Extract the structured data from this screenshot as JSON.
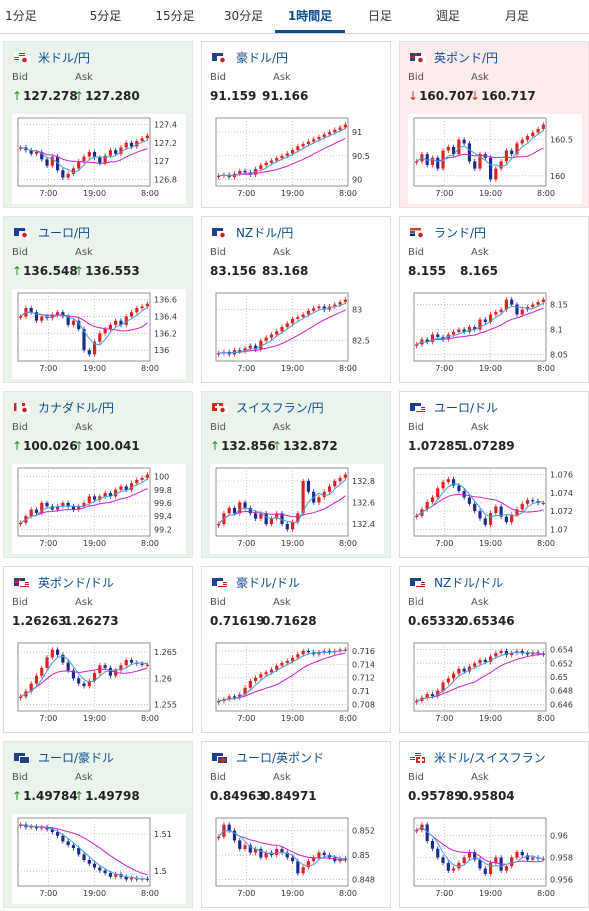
{
  "tabs": [
    {
      "label": "1分足"
    },
    {
      "label": "5分足"
    },
    {
      "label": "15分足"
    },
    {
      "label": "30分足"
    },
    {
      "label": "1時間足",
      "active": true
    },
    {
      "label": "日足"
    },
    {
      "label": "週足"
    },
    {
      "label": "月足"
    }
  ],
  "labels": {
    "bid": "Bid",
    "ask": "Ask"
  },
  "colors": {
    "up_card": "#eaf4ea",
    "down_card": "#fcecec",
    "link": "#0d4c92",
    "candle_up": "#e02020",
    "candle_down": "#1a2a8c",
    "ma1": "#d020d0",
    "ma2": "#40a0e0",
    "grid": "#bbbbbb"
  },
  "x_ticks": [
    "7:00",
    "19:00",
    "8:00"
  ],
  "pairs": [
    {
      "name": "米ドル/円",
      "state": "up",
      "bid": "127.278",
      "ask": "127.280",
      "bid_dir": "up",
      "ask_dir": "up",
      "flags": [
        "us",
        "jp"
      ],
      "yticks": [
        "127.4",
        "127.2",
        "127",
        "126.8"
      ]
    },
    {
      "name": "豪ドル/円",
      "state": "none",
      "bid": "91.159",
      "ask": "91.166",
      "bid_dir": "",
      "ask_dir": "",
      "flags": [
        "au",
        "jp"
      ],
      "yticks": [
        "91",
        "90.5",
        "90"
      ]
    },
    {
      "name": "英ポンド/円",
      "state": "down",
      "bid": "160.707",
      "ask": "160.717",
      "bid_dir": "down",
      "ask_dir": "down",
      "flags": [
        "gb",
        "jp"
      ],
      "yticks": [
        "160.5",
        "160"
      ]
    },
    {
      "name": "ユーロ/円",
      "state": "up",
      "bid": "136.548",
      "ask": "136.553",
      "bid_dir": "up",
      "ask_dir": "up",
      "flags": [
        "eu",
        "jp"
      ],
      "yticks": [
        "136.6",
        "136.4",
        "136.2",
        "136"
      ]
    },
    {
      "name": "NZドル/円",
      "state": "none",
      "bid": "83.156",
      "ask": "83.168",
      "bid_dir": "",
      "ask_dir": "",
      "flags": [
        "nz",
        "jp"
      ],
      "yticks": [
        "83",
        "82.5"
      ]
    },
    {
      "name": "ランド/円",
      "state": "none",
      "bid": "8.155",
      "ask": "8.165",
      "bid_dir": "",
      "ask_dir": "",
      "flags": [
        "za",
        "jp"
      ],
      "yticks": [
        "8.15",
        "8.1",
        "8.05"
      ]
    },
    {
      "name": "カナダドル/円",
      "state": "up",
      "bid": "100.026",
      "ask": "100.041",
      "bid_dir": "up",
      "ask_dir": "up",
      "flags": [
        "ca",
        "jp"
      ],
      "yticks": [
        "100",
        "99.8",
        "99.6",
        "99.4",
        "99.2"
      ]
    },
    {
      "name": "スイスフラン/円",
      "state": "up",
      "bid": "132.856",
      "ask": "132.872",
      "bid_dir": "up",
      "ask_dir": "up",
      "flags": [
        "ch",
        "jp"
      ],
      "yticks": [
        "132.8",
        "132.6",
        "132.4"
      ]
    },
    {
      "name": "ユーロ/ドル",
      "state": "none",
      "bid": "1.07285",
      "ask": "1.07289",
      "bid_dir": "",
      "ask_dir": "",
      "flags": [
        "eu",
        "us"
      ],
      "yticks": [
        "1.076",
        "1.074",
        "1.072",
        "1.07"
      ]
    },
    {
      "name": "英ポンド/ドル",
      "state": "none",
      "bid": "1.26263",
      "ask": "1.26273",
      "bid_dir": "",
      "ask_dir": "",
      "flags": [
        "gb",
        "us"
      ],
      "yticks": [
        "1.265",
        "1.26",
        "1.255"
      ]
    },
    {
      "name": "豪ドル/ドル",
      "state": "none",
      "bid": "0.71619",
      "ask": "0.71628",
      "bid_dir": "",
      "ask_dir": "",
      "flags": [
        "au",
        "us"
      ],
      "yticks": [
        "0.716",
        "0.714",
        "0.712",
        "0.71",
        "0.708"
      ]
    },
    {
      "name": "NZドル/ドル",
      "state": "none",
      "bid": "0.65332",
      "ask": "0.65346",
      "bid_dir": "",
      "ask_dir": "",
      "flags": [
        "nz",
        "us"
      ],
      "yticks": [
        "0.654",
        "0.652",
        "0.65",
        "0.648",
        "0.646"
      ]
    },
    {
      "name": "ユーロ/豪ドル",
      "state": "up",
      "bid": "1.49784",
      "ask": "1.49798",
      "bid_dir": "up",
      "ask_dir": "up",
      "flags": [
        "eu",
        "au"
      ],
      "yticks": [
        "1.51",
        "1.5"
      ]
    },
    {
      "name": "ユーロ/英ポンド",
      "state": "none",
      "bid": "0.84963",
      "ask": "0.84971",
      "bid_dir": "",
      "ask_dir": "",
      "flags": [
        "eu",
        "gb"
      ],
      "yticks": [
        "0.852",
        "0.85",
        "0.848"
      ]
    },
    {
      "name": "米ドル/スイスフラン",
      "state": "none",
      "bid": "0.95789",
      "ask": "0.95804",
      "bid_dir": "",
      "ask_dir": "",
      "flags": [
        "us",
        "ch"
      ],
      "yticks": [
        "0.96",
        "0.958",
        "0.956"
      ]
    }
  ],
  "chart_data": [
    {
      "type": "candlestick",
      "pair": "米ドル/円",
      "y_ticks": [
        127.4,
        127.2,
        127,
        126.8
      ],
      "x_ticks": [
        "7:00",
        "19:00",
        "8:00"
      ],
      "close": [
        127.15,
        127.12,
        127.08,
        127.1,
        127.02,
        126.95,
        127.05,
        126.9,
        126.82,
        126.86,
        126.92,
        127.0,
        127.05,
        127.1,
        127.04,
        126.98,
        127.06,
        127.12,
        127.08,
        127.15,
        127.2,
        127.16,
        127.22,
        127.25,
        127.28
      ]
    },
    {
      "type": "candlestick",
      "pair": "豪ドル/円",
      "y_ticks": [
        91,
        90.5,
        90
      ],
      "x_ticks": [
        "7:00",
        "19:00",
        "8:00"
      ],
      "close": [
        90.08,
        90.1,
        90.05,
        90.12,
        90.18,
        90.15,
        90.1,
        90.22,
        90.3,
        90.35,
        90.4,
        90.45,
        90.5,
        90.55,
        90.62,
        90.7,
        90.75,
        90.8,
        90.85,
        90.9,
        90.95,
        91.0,
        91.05,
        91.1,
        91.16
      ]
    },
    {
      "type": "candlestick",
      "pair": "英ポンド/円",
      "y_ticks": [
        160.5,
        160
      ],
      "x_ticks": [
        "7:00",
        "19:00",
        "8:00"
      ],
      "close": [
        160.2,
        160.3,
        160.15,
        160.25,
        160.1,
        160.35,
        160.4,
        160.3,
        160.5,
        160.45,
        160.2,
        160.1,
        160.3,
        160.25,
        159.95,
        160.1,
        160.2,
        160.35,
        160.3,
        160.45,
        160.5,
        160.55,
        160.6,
        160.65,
        160.71
      ]
    },
    {
      "type": "candlestick",
      "pair": "ユーロ/円",
      "y_ticks": [
        136.6,
        136.4,
        136.2,
        136
      ],
      "x_ticks": [
        "7:00",
        "19:00",
        "8:00"
      ],
      "close": [
        136.4,
        136.5,
        136.45,
        136.35,
        136.4,
        136.38,
        136.42,
        136.45,
        136.4,
        136.3,
        136.35,
        136.25,
        136.0,
        135.95,
        136.1,
        136.2,
        136.25,
        136.3,
        136.35,
        136.3,
        136.4,
        136.45,
        136.5,
        136.52,
        136.55
      ]
    },
    {
      "type": "candlestick",
      "pair": "NZドル/円",
      "y_ticks": [
        83,
        82.5
      ],
      "x_ticks": [
        "7:00",
        "19:00",
        "8:00"
      ],
      "close": [
        82.3,
        82.32,
        82.28,
        82.35,
        82.33,
        82.38,
        82.42,
        82.36,
        82.5,
        82.55,
        82.6,
        82.65,
        82.72,
        82.78,
        82.85,
        82.88,
        82.92,
        82.98,
        83.02,
        83.05,
        83.0,
        83.05,
        83.08,
        83.12,
        83.16
      ]
    },
    {
      "type": "candlestick",
      "pair": "ランド/円",
      "y_ticks": [
        8.15,
        8.1,
        8.05
      ],
      "x_ticks": [
        "7:00",
        "19:00",
        "8:00"
      ],
      "close": [
        8.07,
        8.08,
        8.075,
        8.09,
        8.085,
        8.08,
        8.09,
        8.095,
        8.1,
        8.095,
        8.105,
        8.1,
        8.12,
        8.115,
        8.13,
        8.135,
        8.14,
        8.16,
        8.15,
        8.13,
        8.14,
        8.145,
        8.15,
        8.155,
        8.16
      ]
    },
    {
      "type": "candlestick",
      "pair": "カナダドル/円",
      "y_ticks": [
        100,
        99.8,
        99.6,
        99.4,
        99.2
      ],
      "x_ticks": [
        "7:00",
        "19:00",
        "8:00"
      ],
      "close": [
        99.3,
        99.4,
        99.5,
        99.45,
        99.6,
        99.55,
        99.5,
        99.55,
        99.6,
        99.55,
        99.5,
        99.55,
        99.6,
        99.7,
        99.65,
        99.7,
        99.75,
        99.7,
        99.8,
        99.85,
        99.8,
        99.9,
        99.95,
        99.98,
        100.03
      ]
    },
    {
      "type": "candlestick",
      "pair": "スイスフラン/円",
      "y_ticks": [
        132.8,
        132.6,
        132.4
      ],
      "x_ticks": [
        "7:00",
        "19:00",
        "8:00"
      ],
      "close": [
        132.4,
        132.5,
        132.55,
        132.5,
        132.6,
        132.55,
        132.5,
        132.45,
        132.5,
        132.4,
        132.45,
        132.5,
        132.4,
        132.35,
        132.42,
        132.5,
        132.8,
        132.7,
        132.6,
        132.65,
        132.7,
        132.75,
        132.8,
        132.83,
        132.86
      ]
    },
    {
      "type": "candlestick",
      "pair": "ユーロ/ドル",
      "y_ticks": [
        1.076,
        1.074,
        1.072,
        1.07
      ],
      "x_ticks": [
        "7:00",
        "19:00",
        "8:00"
      ],
      "close": [
        1.0715,
        1.0722,
        1.073,
        1.0735,
        1.0745,
        1.0752,
        1.0755,
        1.0748,
        1.0742,
        1.0735,
        1.0728,
        1.072,
        1.0712,
        1.0705,
        1.0718,
        1.0725,
        1.0714,
        1.0708,
        1.0716,
        1.0722,
        1.0728,
        1.0732,
        1.0731,
        1.0729,
        1.0729
      ]
    },
    {
      "type": "candlestick",
      "pair": "英ポンド/ドル",
      "y_ticks": [
        1.265,
        1.26,
        1.255
      ],
      "x_ticks": [
        "7:00",
        "19:00",
        "8:00"
      ],
      "close": [
        1.2565,
        1.2575,
        1.259,
        1.2605,
        1.262,
        1.264,
        1.2655,
        1.2645,
        1.263,
        1.2615,
        1.26,
        1.259,
        1.2585,
        1.2595,
        1.261,
        1.2625,
        1.262,
        1.2605,
        1.2615,
        1.2625,
        1.2635,
        1.263,
        1.2628,
        1.2626,
        1.2626
      ]
    },
    {
      "type": "candlestick",
      "pair": "豪ドル/ドル",
      "y_ticks": [
        0.716,
        0.714,
        0.712,
        0.71,
        0.708
      ],
      "x_ticks": [
        "7:00",
        "19:00",
        "8:00"
      ],
      "close": [
        0.7085,
        0.7088,
        0.7092,
        0.709,
        0.7095,
        0.7105,
        0.7115,
        0.712,
        0.7125,
        0.7128,
        0.7132,
        0.7138,
        0.7142,
        0.7145,
        0.715,
        0.7155,
        0.716,
        0.7158,
        0.7155,
        0.7158,
        0.716,
        0.7158,
        0.716,
        0.7162,
        0.7162
      ]
    },
    {
      "type": "candlestick",
      "pair": "NZドル/ドル",
      "y_ticks": [
        0.654,
        0.652,
        0.65,
        0.648,
        0.646
      ],
      "x_ticks": [
        "7:00",
        "19:00",
        "8:00"
      ],
      "close": [
        0.6465,
        0.647,
        0.6475,
        0.6472,
        0.648,
        0.6492,
        0.6498,
        0.6505,
        0.6512,
        0.6508,
        0.6515,
        0.652,
        0.6525,
        0.6522,
        0.653,
        0.6535,
        0.6538,
        0.6532,
        0.6535,
        0.6538,
        0.6535,
        0.6533,
        0.6536,
        0.6534,
        0.6533
      ]
    },
    {
      "type": "candlestick",
      "pair": "ユーロ/豪ドル",
      "y_ticks": [
        1.51,
        1.5
      ],
      "x_ticks": [
        "7:00",
        "19:00",
        "8:00"
      ],
      "close": [
        1.5125,
        1.5118,
        1.512,
        1.5115,
        1.5118,
        1.5112,
        1.5105,
        1.5095,
        1.508,
        1.507,
        1.5062,
        1.5045,
        1.503,
        1.502,
        1.501,
        1.5002,
        1.4995,
        1.4985,
        1.4992,
        1.4985,
        1.4978,
        1.4982,
        1.4978,
        1.498,
        1.4978
      ]
    },
    {
      "type": "candlestick",
      "pair": "ユーロ/英ポンド",
      "y_ticks": [
        0.852,
        0.85,
        0.848
      ],
      "x_ticks": [
        "7:00",
        "19:00",
        "8:00"
      ],
      "close": [
        0.8515,
        0.8525,
        0.852,
        0.8512,
        0.8505,
        0.8508,
        0.8502,
        0.8505,
        0.8498,
        0.8502,
        0.85,
        0.8505,
        0.8502,
        0.8498,
        0.8495,
        0.8485,
        0.849,
        0.8495,
        0.8498,
        0.8502,
        0.85,
        0.8498,
        0.8495,
        0.8497,
        0.8496
      ]
    },
    {
      "type": "candlestick",
      "pair": "米ドル/スイスフラン",
      "y_ticks": [
        0.96,
        0.958,
        0.956
      ],
      "x_ticks": [
        "7:00",
        "19:00",
        "8:00"
      ],
      "close": [
        0.9605,
        0.961,
        0.9595,
        0.9588,
        0.958,
        0.9575,
        0.9568,
        0.957,
        0.9575,
        0.958,
        0.9585,
        0.9578,
        0.957,
        0.9565,
        0.9575,
        0.958,
        0.9568,
        0.9572,
        0.958,
        0.9585,
        0.9582,
        0.9578,
        0.958,
        0.9579,
        0.9579
      ]
    }
  ]
}
